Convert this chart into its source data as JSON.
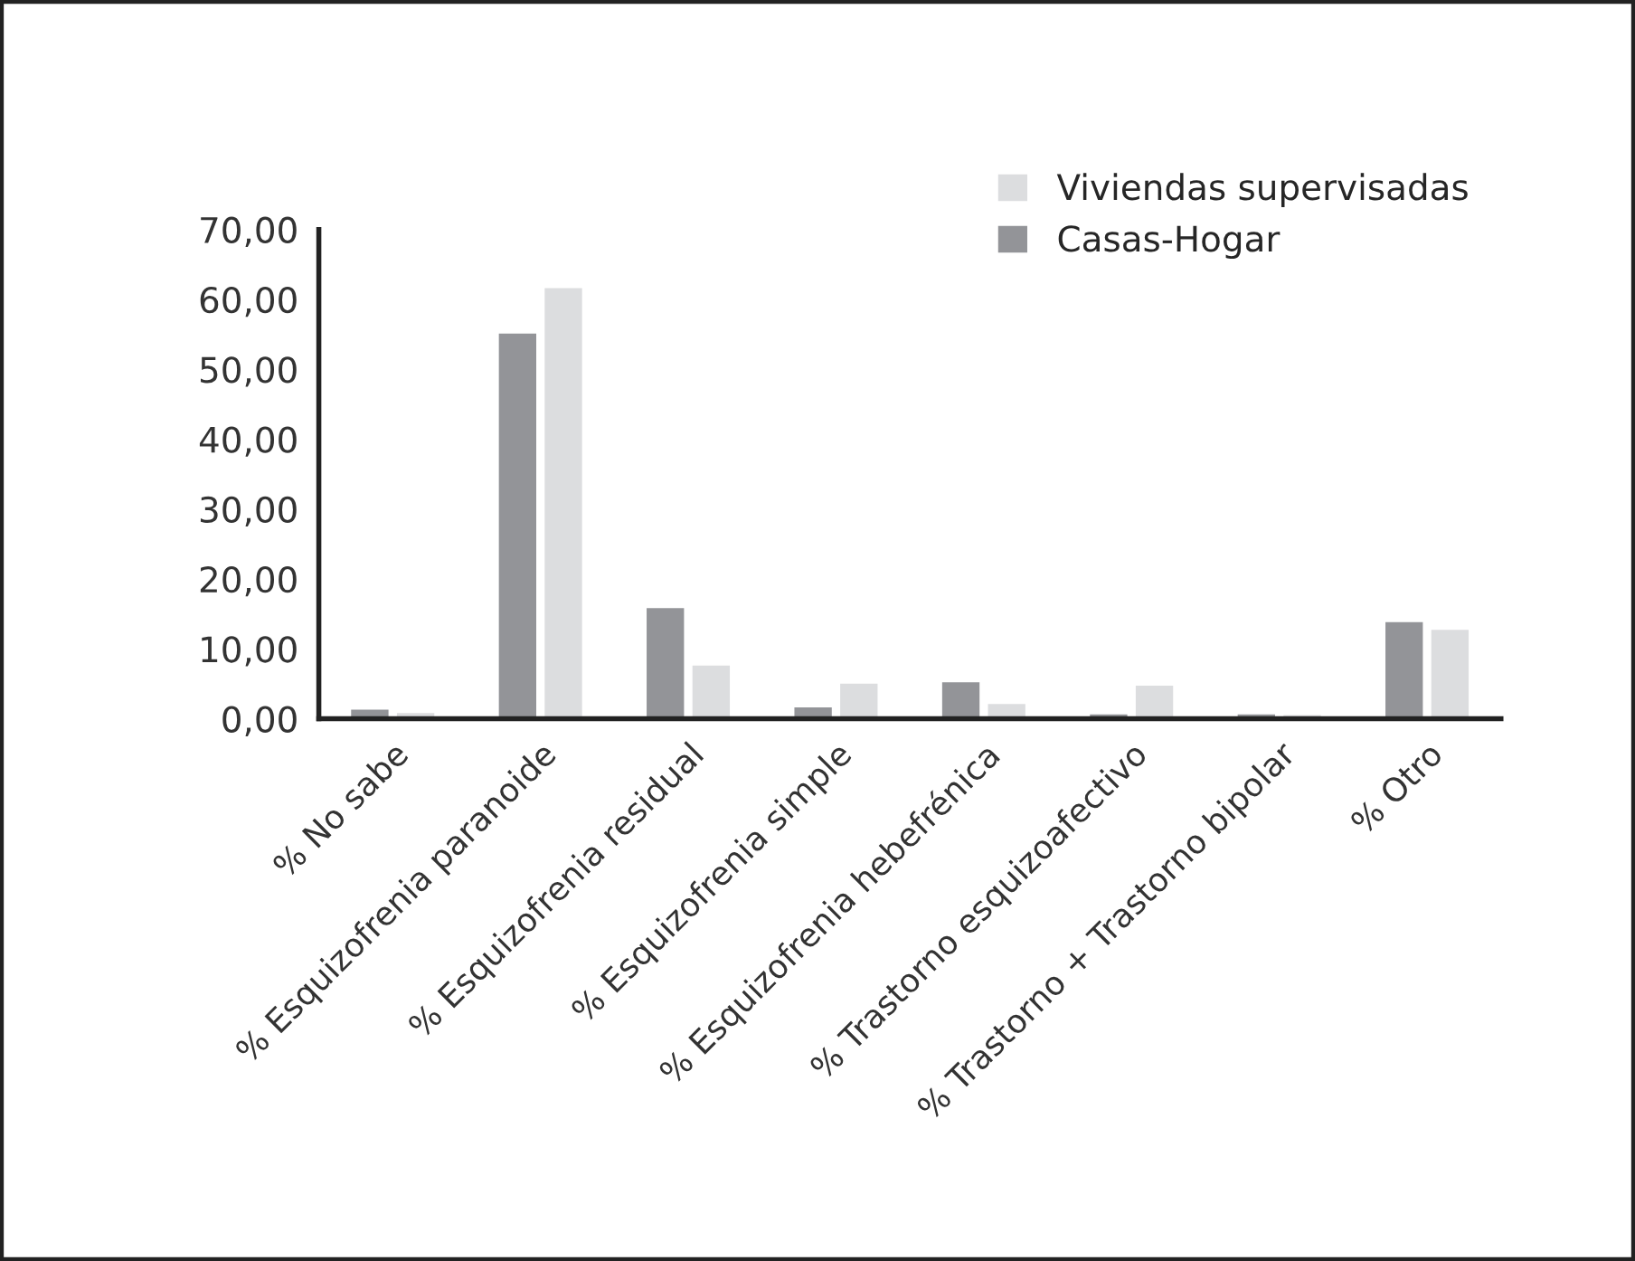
{
  "chart_data": {
    "type": "bar",
    "categories": [
      "% No sabe",
      "% Esquizofrenia paranoide",
      "% Esquizofrenia residual",
      "% Esquizofrenia simple",
      "% Esquizofrenia hebefrénica",
      "% Trastorno esquizoafectivo",
      "% Trastorno + Trastorno bipolar",
      "% Otro"
    ],
    "series": [
      {
        "name": "Casas-Hogar",
        "color": "#939498",
        "values": [
          1.5,
          55.3,
          16.0,
          1.8,
          5.4,
          0.8,
          0.8,
          14.0
        ]
      },
      {
        "name": "Viviendas supervisadas",
        "color": "#dcdddf",
        "values": [
          1.0,
          61.8,
          7.8,
          5.2,
          2.3,
          4.9,
          0.7,
          12.9
        ]
      }
    ],
    "ylim": [
      0,
      70
    ],
    "yticks": [
      {
        "value": 0,
        "label": "0,00"
      },
      {
        "value": 10,
        "label": "10,00"
      },
      {
        "value": 20,
        "label": "20,00"
      },
      {
        "value": 30,
        "label": "30,00"
      },
      {
        "value": 40,
        "label": "40,00"
      },
      {
        "value": 50,
        "label": "50,00"
      },
      {
        "value": 60,
        "label": "60,00"
      },
      {
        "value": 70,
        "label": "70,00"
      }
    ],
    "grid": false,
    "legend": "top right"
  }
}
